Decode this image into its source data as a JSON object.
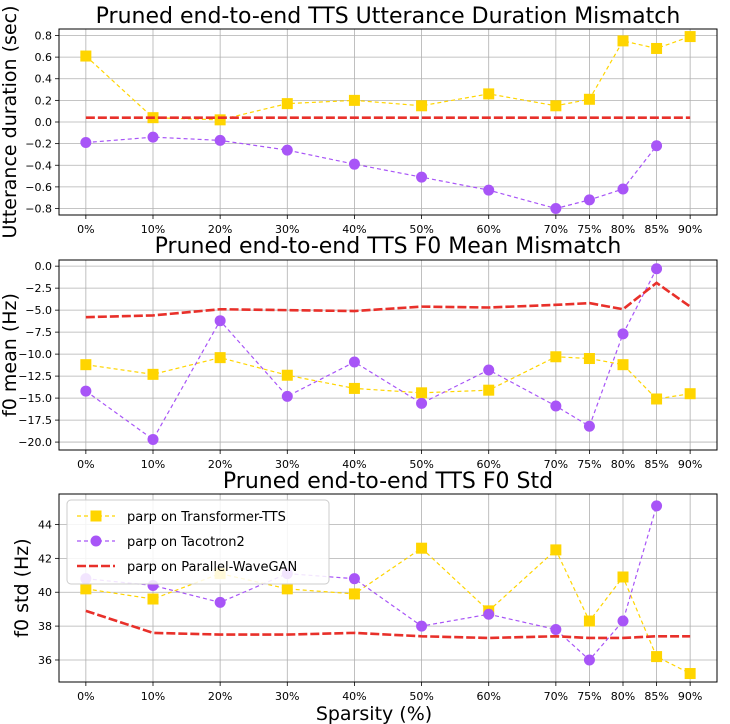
{
  "chart_data": [
    {
      "type": "line",
      "title": "Pruned end-to-end TTS Utterance Duration Mismatch",
      "xlabel": "",
      "ylabel": "Utterance duration (sec)",
      "categories": [
        "0%",
        "10%",
        "20%",
        "30%",
        "40%",
        "50%",
        "60%",
        "70%",
        "75%",
        "80%",
        "85%",
        "90%"
      ],
      "x": [
        0,
        10,
        20,
        30,
        40,
        50,
        60,
        70,
        75,
        80,
        85,
        90
      ],
      "xlim": [
        -4,
        94
      ],
      "ylim": [
        -0.86,
        0.86
      ],
      "yticks": [
        -0.8,
        -0.6,
        -0.4,
        -0.2,
        0.0,
        0.2,
        0.4,
        0.6,
        0.8
      ],
      "ytick_labels": [
        "−0.8",
        "−0.6",
        "−0.4",
        "−0.2",
        "0.0",
        "0.2",
        "0.4",
        "0.6",
        "0.8"
      ],
      "grid": true,
      "series": [
        {
          "name": "parp on Transformer-TTS",
          "color": "#FFD500",
          "marker": "square",
          "linestyle": "dashed",
          "x": [
            0,
            10,
            20,
            30,
            40,
            50,
            60,
            70,
            75,
            80,
            85,
            90
          ],
          "values": [
            0.61,
            0.04,
            0.02,
            0.17,
            0.2,
            0.15,
            0.26,
            0.15,
            0.21,
            0.75,
            0.68,
            0.79
          ]
        },
        {
          "name": "parp on Tacotron2",
          "color": "#A855F7",
          "marker": "circle",
          "linestyle": "dashed",
          "x": [
            0,
            10,
            20,
            30,
            40,
            50,
            60,
            70,
            75,
            80,
            85
          ],
          "values": [
            -0.19,
            -0.14,
            -0.17,
            -0.26,
            -0.39,
            -0.51,
            -0.63,
            -0.8,
            -0.72,
            -0.62,
            -0.22
          ]
        },
        {
          "name": "parp on Parallel-WaveGAN",
          "color": "#E8302A",
          "marker": "none",
          "linestyle": "dashdot",
          "x": [
            0,
            10,
            20,
            30,
            40,
            50,
            60,
            70,
            75,
            80,
            85,
            90
          ],
          "values": [
            0.04,
            0.04,
            0.04,
            0.04,
            0.04,
            0.04,
            0.04,
            0.04,
            0.04,
            0.04,
            0.04,
            0.04
          ]
        }
      ]
    },
    {
      "type": "line",
      "title": "Pruned end-to-end TTS F0 Mean Mismatch",
      "xlabel": "",
      "ylabel": "f0 mean (Hz)",
      "categories": [
        "0%",
        "10%",
        "20%",
        "30%",
        "40%",
        "50%",
        "60%",
        "70%",
        "75%",
        "80%",
        "85%",
        "90%"
      ],
      "x": [
        0,
        10,
        20,
        30,
        40,
        50,
        60,
        70,
        75,
        80,
        85,
        90
      ],
      "xlim": [
        -4,
        94
      ],
      "ylim": [
        -20.9,
        0.7
      ],
      "yticks": [
        -20.0,
        -17.5,
        -15.0,
        -12.5,
        -10.0,
        -7.5,
        -5.0,
        -2.5,
        0.0
      ],
      "ytick_labels": [
        "−20.0",
        "−17.5",
        "−15.0",
        "−12.5",
        "−10.0",
        "−7.5",
        "−5.0",
        "−2.5",
        "0.0"
      ],
      "grid": true,
      "series": [
        {
          "name": "parp on Transformer-TTS",
          "color": "#FFD500",
          "marker": "square",
          "linestyle": "dashed",
          "x": [
            0,
            10,
            20,
            30,
            40,
            50,
            60,
            70,
            75,
            80,
            85,
            90
          ],
          "values": [
            -11.2,
            -12.3,
            -10.4,
            -12.4,
            -13.9,
            -14.4,
            -14.1,
            -10.3,
            -10.5,
            -11.2,
            -15.1,
            -14.5
          ]
        },
        {
          "name": "parp on Tacotron2",
          "color": "#A855F7",
          "marker": "circle",
          "linestyle": "dashed",
          "x": [
            0,
            10,
            20,
            30,
            40,
            50,
            60,
            70,
            75,
            80,
            85
          ],
          "values": [
            -14.2,
            -19.7,
            -6.2,
            -14.8,
            -10.9,
            -15.6,
            -11.8,
            -15.9,
            -18.2,
            -7.7,
            -0.3
          ]
        },
        {
          "name": "parp on Parallel-WaveGAN",
          "color": "#E8302A",
          "marker": "none",
          "linestyle": "dashdot",
          "x": [
            0,
            10,
            20,
            30,
            40,
            50,
            60,
            70,
            75,
            80,
            85,
            90
          ],
          "values": [
            -5.8,
            -5.6,
            -4.9,
            -5.0,
            -5.1,
            -4.6,
            -4.7,
            -4.4,
            -4.2,
            -4.9,
            -1.9,
            -4.6
          ]
        }
      ]
    },
    {
      "type": "line",
      "title": "Pruned end-to-end TTS F0 Std",
      "xlabel": "Sparsity (%)",
      "ylabel": "f0 std (Hz)",
      "categories": [
        "0%",
        "10%",
        "20%",
        "30%",
        "40%",
        "50%",
        "60%",
        "70%",
        "75%",
        "80%",
        "85%",
        "90%"
      ],
      "x": [
        0,
        10,
        20,
        30,
        40,
        50,
        60,
        70,
        75,
        80,
        85,
        90
      ],
      "xlim": [
        -4,
        94
      ],
      "ylim": [
        34.7,
        45.8
      ],
      "yticks": [
        36,
        38,
        40,
        42,
        44
      ],
      "ytick_labels": [
        "36",
        "38",
        "40",
        "42",
        "44"
      ],
      "grid": true,
      "legend": "upper-left",
      "series": [
        {
          "name": "parp on Transformer-TTS",
          "color": "#FFD500",
          "marker": "square",
          "linestyle": "dashed",
          "x": [
            0,
            10,
            20,
            30,
            40,
            50,
            60,
            70,
            75,
            80,
            85,
            90
          ],
          "values": [
            40.2,
            39.6,
            41.1,
            40.2,
            39.9,
            42.6,
            38.9,
            42.5,
            38.3,
            40.9,
            36.2,
            35.2
          ]
        },
        {
          "name": "parp on Tacotron2",
          "color": "#A855F7",
          "marker": "circle",
          "linestyle": "dashed",
          "x": [
            0,
            10,
            20,
            30,
            40,
            50,
            60,
            70,
            75,
            80,
            85
          ],
          "values": [
            40.8,
            40.4,
            39.4,
            41.1,
            40.8,
            38.0,
            38.7,
            37.8,
            36.0,
            38.3,
            45.1
          ]
        },
        {
          "name": "parp on Parallel-WaveGAN",
          "color": "#E8302A",
          "marker": "none",
          "linestyle": "dashdot",
          "x": [
            0,
            10,
            20,
            30,
            40,
            50,
            60,
            70,
            75,
            80,
            85,
            90
          ],
          "values": [
            38.9,
            37.6,
            37.5,
            37.5,
            37.6,
            37.4,
            37.3,
            37.4,
            37.3,
            37.3,
            37.4,
            37.4
          ]
        }
      ]
    }
  ]
}
